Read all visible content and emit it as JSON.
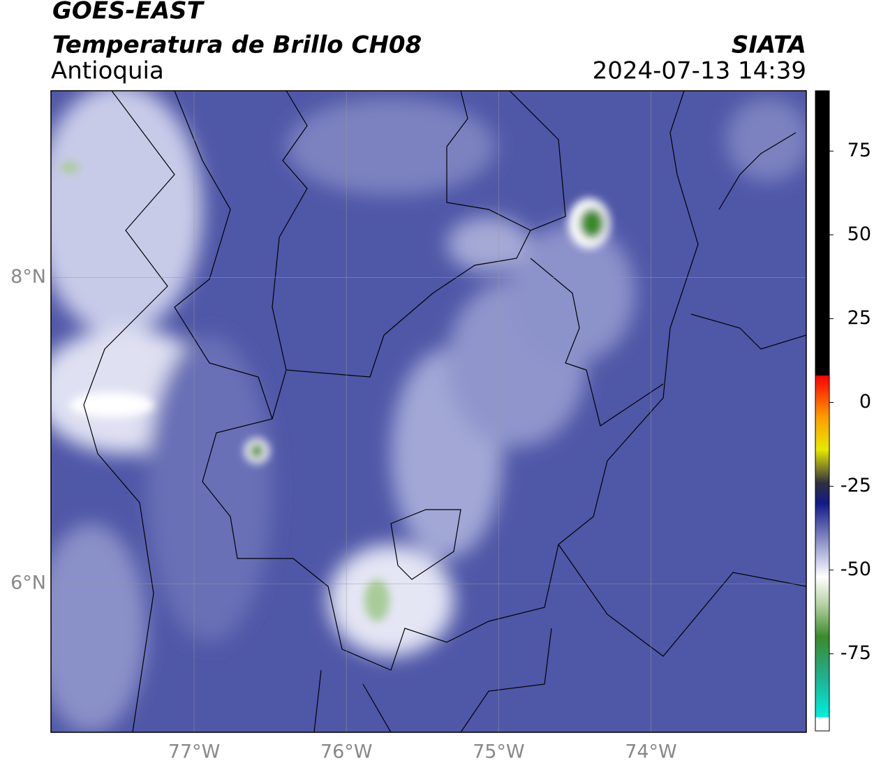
{
  "header": {
    "title": "GOES-EAST",
    "subtitle": "Temperatura de Brillo CH08",
    "region": "Antioquia",
    "source": "SIATA",
    "datetime": "2024-07-13 14:39"
  },
  "map": {
    "xlim": [
      -77.94,
      -72.98
    ],
    "ylim": [
      5.03,
      9.22
    ],
    "xticks": [
      {
        "value": -77,
        "label": "77°W"
      },
      {
        "value": -76,
        "label": "76°W"
      },
      {
        "value": -75,
        "label": "75°W"
      },
      {
        "value": -74,
        "label": "74°W"
      }
    ],
    "yticks": [
      {
        "value": 6,
        "label": "6°N"
      },
      {
        "value": 8,
        "label": "8°N"
      }
    ],
    "grid": true
  },
  "colorbar": {
    "lim": [
      -98,
      93
    ],
    "ticks": [
      -75,
      -50,
      -25,
      0,
      25,
      50,
      75
    ],
    "stops": [
      {
        "value": -98,
        "color": "#ffffff"
      },
      {
        "value": -94,
        "color": "#ffffff"
      },
      {
        "value": -93.9,
        "color": "#00eedd"
      },
      {
        "value": -82,
        "color": "#20b090"
      },
      {
        "value": -70,
        "color": "#3a8a2a"
      },
      {
        "value": -60,
        "color": "#b8d4a8"
      },
      {
        "value": -52,
        "color": "#ffffff"
      },
      {
        "value": -44,
        "color": "#a8acd8"
      },
      {
        "value": -36,
        "color": "#5058a8"
      },
      {
        "value": -30,
        "color": "#101a88"
      },
      {
        "value": -24,
        "color": "#303040"
      },
      {
        "value": -14,
        "color": "#e8e800"
      },
      {
        "value": -4,
        "color": "#ff9900"
      },
      {
        "value": 5,
        "color": "#ff2200"
      },
      {
        "value": 8,
        "color": "#ff0000"
      },
      {
        "value": 8.1,
        "color": "#000000"
      },
      {
        "value": 93,
        "color": "#000000"
      }
    ]
  }
}
